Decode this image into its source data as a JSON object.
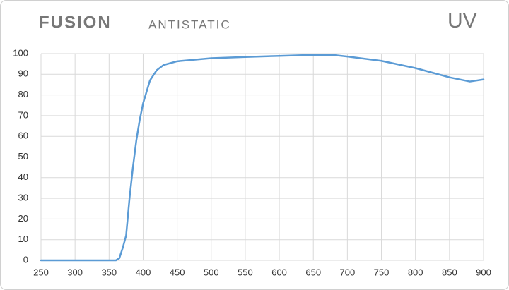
{
  "chart_data": {
    "type": "line",
    "title": "FUSION",
    "subtitle": "ANTISTATIC",
    "annotation": "UV",
    "x": [
      250,
      300,
      350,
      360,
      365,
      370,
      375,
      380,
      385,
      390,
      395,
      400,
      410,
      420,
      430,
      450,
      500,
      550,
      600,
      650,
      680,
      700,
      750,
      800,
      850,
      880,
      900
    ],
    "series": [
      {
        "name": "UV",
        "color": "#5b9bd5",
        "values": [
          0,
          0,
          0,
          0,
          1,
          6,
          12,
          30,
          45,
          58,
          68,
          76,
          87,
          92,
          94.5,
          96.3,
          97.8,
          98.4,
          98.9,
          99.4,
          99.3,
          98.6,
          96.5,
          93,
          88.5,
          86.5,
          87.5
        ]
      }
    ],
    "xlim": [
      250,
      900
    ],
    "xticks": [
      250,
      300,
      350,
      400,
      450,
      500,
      550,
      600,
      650,
      700,
      750,
      800,
      850,
      900
    ],
    "ylim": [
      0,
      100
    ],
    "yticks": [
      0,
      10,
      20,
      30,
      40,
      50,
      60,
      70,
      80,
      90,
      100
    ],
    "grid": true
  }
}
